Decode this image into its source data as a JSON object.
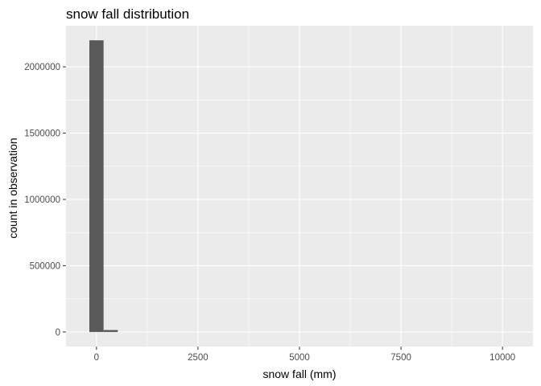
{
  "chart_data": {
    "type": "bar",
    "title": "snow fall distribution",
    "xlabel": "snow fall (mm)",
    "ylabel": "count in observation",
    "x_ticks": [
      0,
      2500,
      5000,
      7500,
      10000
    ],
    "x_tick_labels": [
      "0",
      "2500",
      "5000",
      "7500",
      "10000"
    ],
    "y_ticks": [
      0,
      500000,
      1000000,
      1500000,
      2000000
    ],
    "y_tick_labels": [
      "0",
      "500000",
      "1000000",
      "1500000",
      "2000000"
    ],
    "xlim": [
      -750,
      10750
    ],
    "ylim": [
      -110000,
      2310000
    ],
    "bin_width": 350,
    "bins": [
      {
        "x": 0,
        "count": 2200000
      },
      {
        "x": 350,
        "count": 15000
      }
    ],
    "grid": true,
    "colors": {
      "panel": "#ebebeb",
      "grid_major": "#ffffff",
      "bar_fill": "#595959",
      "tick": "#333333",
      "tick_label": "#4d4d4d"
    }
  }
}
